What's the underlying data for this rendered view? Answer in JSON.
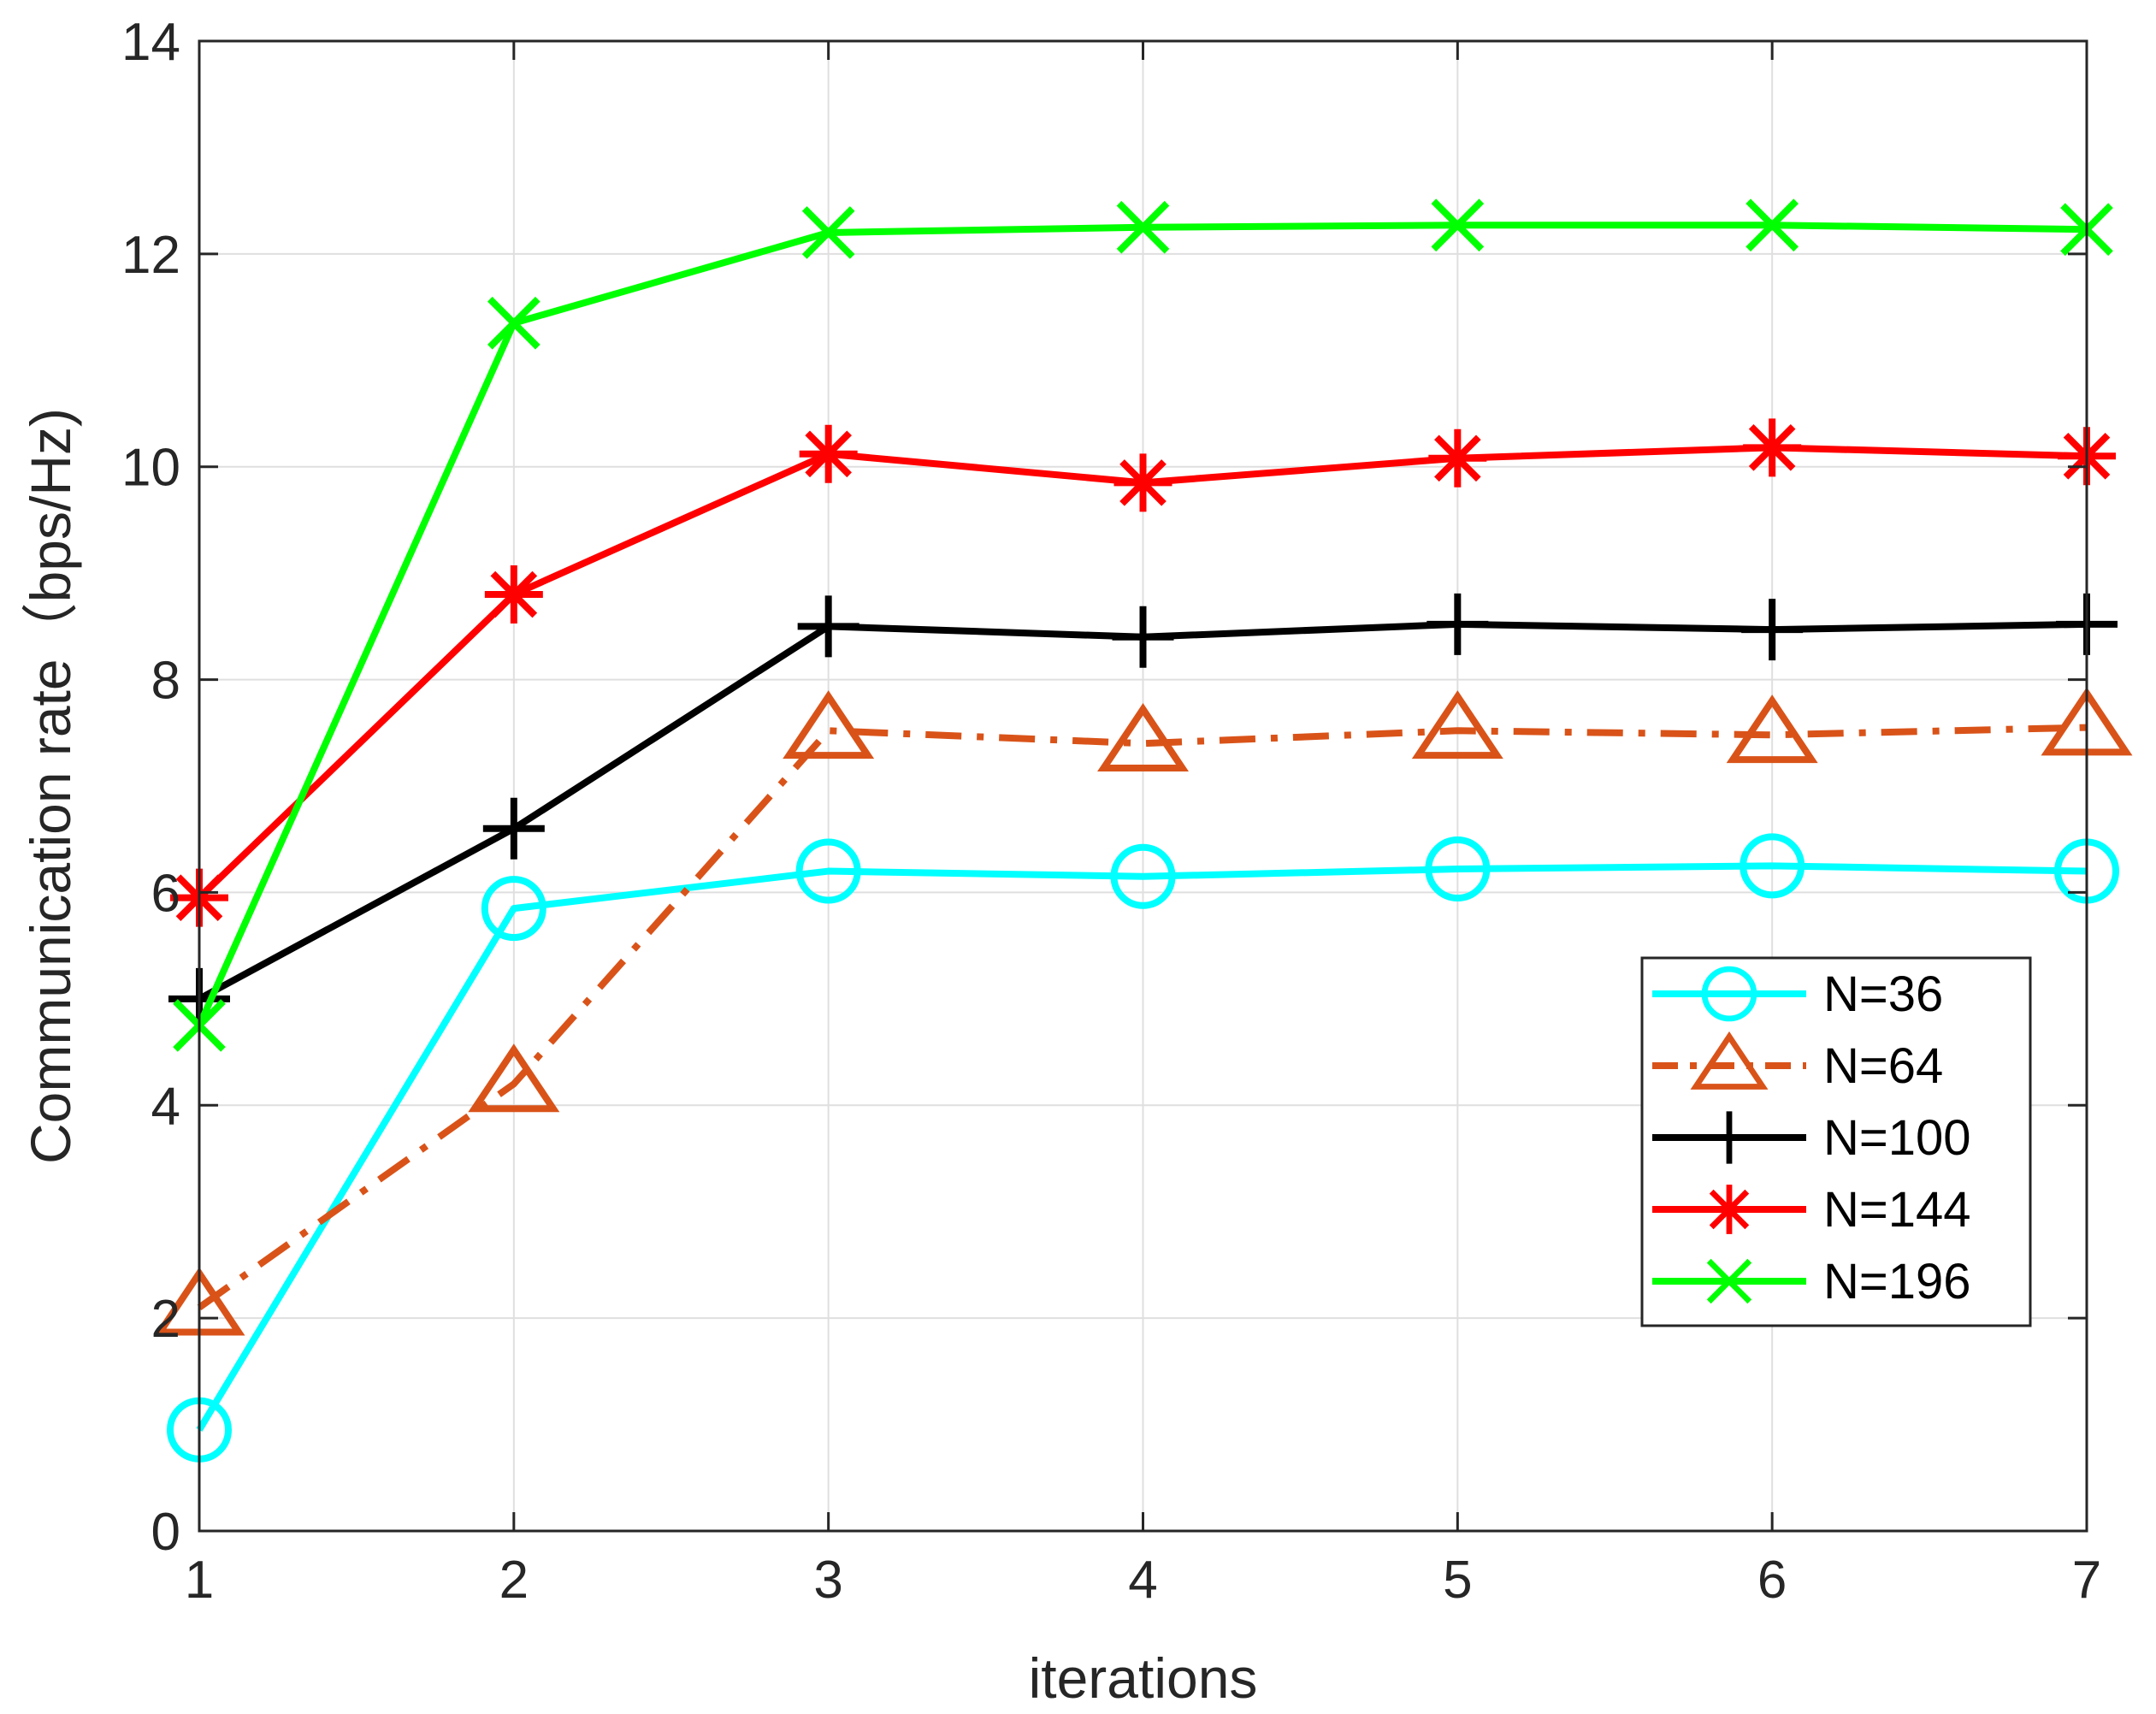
{
  "chart_data": {
    "type": "line",
    "title": "",
    "xlabel": "iterations",
    "ylabel": "Communication rate（bps/Hz)",
    "x": [
      1,
      2,
      3,
      4,
      5,
      6,
      7
    ],
    "xlim": [
      1,
      7
    ],
    "ylim": [
      0,
      14
    ],
    "xticks": [
      1,
      2,
      3,
      4,
      5,
      6,
      7
    ],
    "yticks": [
      0,
      2,
      4,
      6,
      8,
      10,
      12,
      14
    ],
    "grid": true,
    "legend_position": "middle-right",
    "series": [
      {
        "name": "N=36",
        "marker": "circle",
        "line_style": "solid",
        "color": "#00ffff",
        "values": [
          0.95,
          5.85,
          6.2,
          6.15,
          6.22,
          6.25,
          6.2
        ]
      },
      {
        "name": "N=64",
        "marker": "triangle",
        "line_style": "dashdot",
        "color": "#d95319",
        "values": [
          2.1,
          4.2,
          7.52,
          7.4,
          7.52,
          7.48,
          7.55
        ]
      },
      {
        "name": "N=100",
        "marker": "plus",
        "line_style": "solid",
        "color": "#000000",
        "values": [
          5.0,
          6.6,
          8.5,
          8.4,
          8.52,
          8.47,
          8.52
        ]
      },
      {
        "name": "N=144",
        "marker": "asterisk",
        "line_style": "solid",
        "color": "#ff0000",
        "values": [
          5.95,
          8.8,
          10.12,
          9.85,
          10.08,
          10.18,
          10.1
        ]
      },
      {
        "name": "N=196",
        "marker": "x",
        "line_style": "solid",
        "color": "#00ff00",
        "values": [
          4.75,
          11.35,
          12.2,
          12.25,
          12.27,
          12.27,
          12.23
        ]
      }
    ]
  }
}
